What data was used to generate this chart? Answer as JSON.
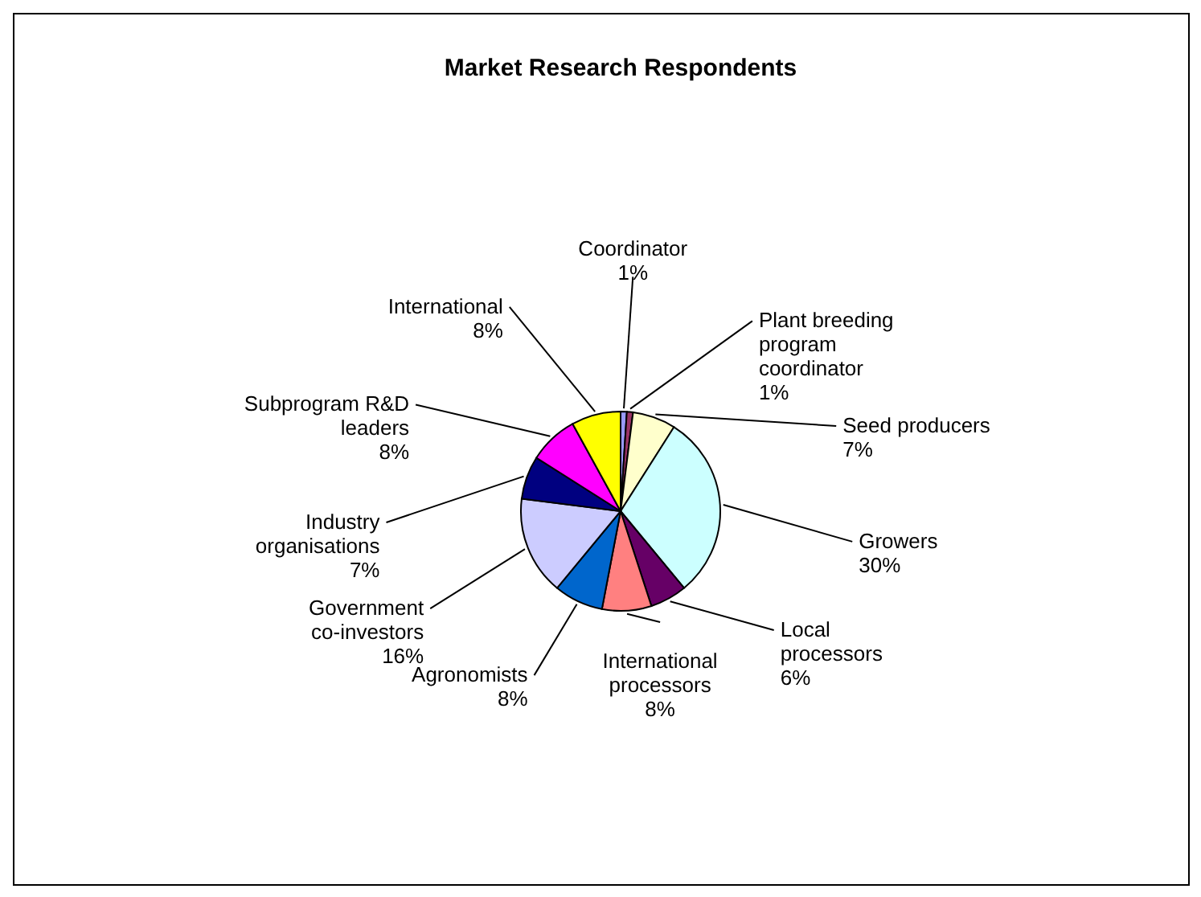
{
  "chart_data": {
    "type": "pie",
    "title": "Market Research Respondents",
    "categories": [
      "Coordinator",
      "Plant breeding program coordinator",
      "Seed producers",
      "Growers",
      "Local processors",
      "International processors",
      "Agronomists",
      "Government co-investors",
      "Industry organisations",
      "Subprogram R&D leaders",
      "International"
    ],
    "values": [
      1,
      1,
      7,
      30,
      6,
      8,
      8,
      16,
      7,
      8,
      8
    ],
    "value_labels": [
      "1%",
      "1%",
      "7%",
      "30%",
      "6%",
      "8%",
      "8%",
      "16%",
      "7%",
      "8%",
      "8%"
    ],
    "colors": [
      "#9999ff",
      "#993366",
      "#ffffcc",
      "#ccffff",
      "#660066",
      "#ff8080",
      "#0066cc",
      "#ccccff",
      "#000080",
      "#ff00ff",
      "#ffff00"
    ]
  }
}
